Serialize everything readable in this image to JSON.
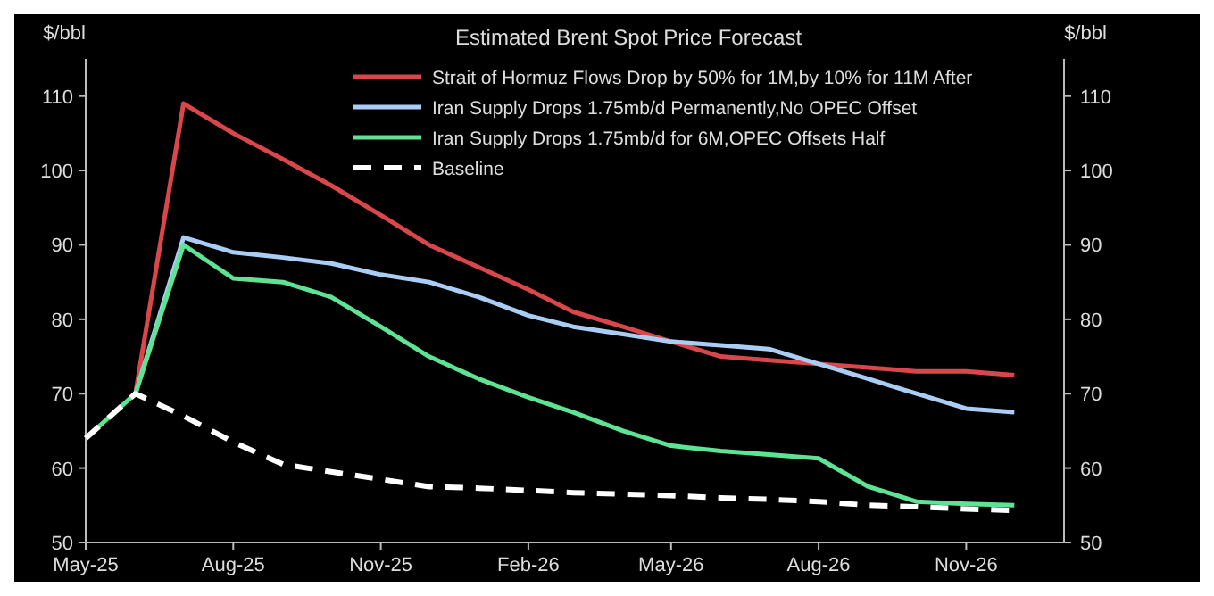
{
  "chart_data": {
    "type": "line",
    "title": "Estimated Brent Spot Price Forecast",
    "ylabel": "$/bbl",
    "y2label": "$/bbl",
    "x": [
      "2025-05",
      "2025-06",
      "2025-07",
      "2025-08",
      "2025-09",
      "2025-10",
      "2025-11",
      "2025-12",
      "2026-01",
      "2026-02",
      "2026-03",
      "2026-04",
      "2026-05",
      "2026-06",
      "2026-07",
      "2026-08",
      "2026-09",
      "2026-10",
      "2026-11",
      "2026-12"
    ],
    "series": [
      {
        "name": "Strait of Hormuz Flows Drop by 50% for 1M,by 10% for 11M After",
        "color": "#d9474a",
        "values": [
          null,
          70,
          109,
          105,
          101.5,
          98,
          94,
          90,
          87,
          84,
          81,
          79,
          77,
          75,
          74.5,
          74,
          73.5,
          73,
          73,
          72.5
        ]
      },
      {
        "name": "Iran Supply Drops 1.75mb/d Permanently,No OPEC Offset",
        "color": "#a9cdf5",
        "values": [
          null,
          70,
          91,
          89,
          88.3,
          87.5,
          86,
          85,
          83,
          80.5,
          79,
          78,
          77,
          76.5,
          76,
          74,
          72,
          70,
          68,
          67.5
        ]
      },
      {
        "name": "Iran Supply Drops 1.75mb/d for 6M,OPEC Offsets Half",
        "color": "#5ee394",
        "values": [
          64,
          70,
          90,
          85.5,
          85,
          83,
          79,
          75,
          72,
          69.5,
          67.5,
          65,
          63,
          62.3,
          61.8,
          61.3,
          57.5,
          55.5,
          55.2,
          55
        ]
      },
      {
        "name": "Baseline",
        "color": "#ffffff",
        "line_style": "dashed",
        "values": [
          64,
          70,
          67,
          63.5,
          60.5,
          59.5,
          58.5,
          57.5,
          57.3,
          57,
          56.7,
          56.5,
          56.3,
          56,
          55.8,
          55.5,
          55,
          54.8,
          54.5,
          54.3
        ]
      }
    ],
    "xlim": [
      "2025-05",
      "2027-01"
    ],
    "xticks": [
      {
        "value": "2025-05",
        "label": "May-25"
      },
      {
        "value": "2025-08",
        "label": "Aug-25"
      },
      {
        "value": "2025-11",
        "label": "Nov-25"
      },
      {
        "value": "2026-02",
        "label": "Feb-26"
      },
      {
        "value": "2026-05",
        "label": "May-26"
      },
      {
        "value": "2026-08",
        "label": "Aug-26"
      },
      {
        "value": "2026-11",
        "label": "Nov-26"
      }
    ],
    "ylim": [
      50,
      115
    ],
    "yticks": [
      50,
      60,
      70,
      80,
      90,
      100,
      110
    ],
    "y2lim": [
      50,
      115
    ],
    "y2ticks": [
      50,
      60,
      70,
      80,
      90,
      100,
      110
    ],
    "legend": "top right",
    "grid": false,
    "line_style": "solid"
  }
}
